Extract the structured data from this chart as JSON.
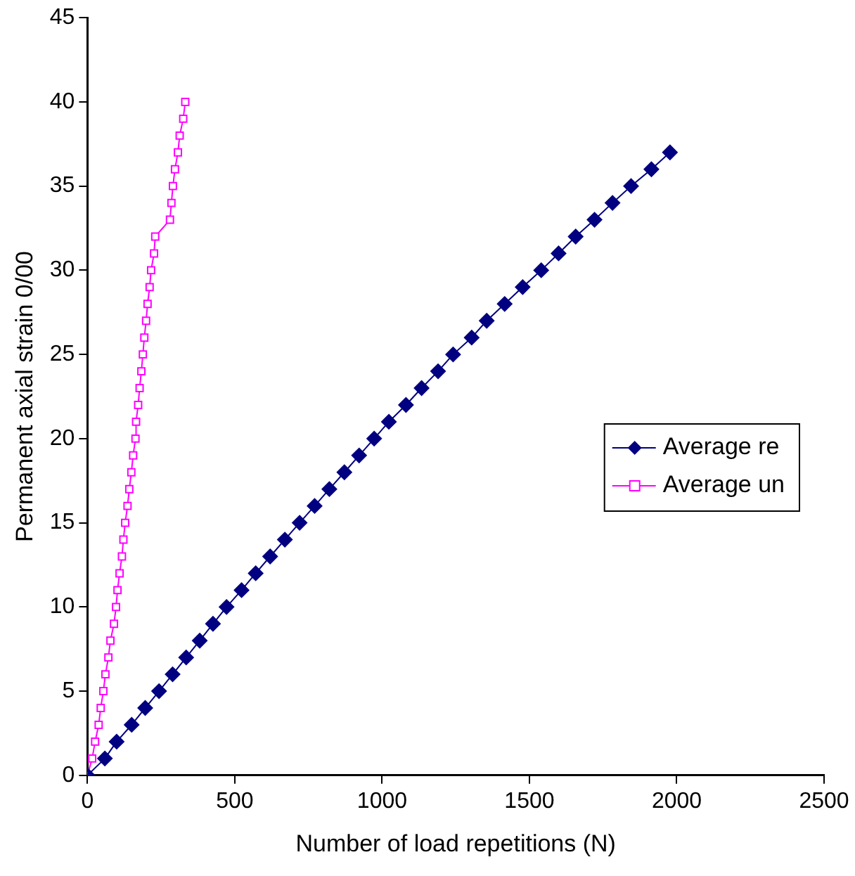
{
  "chart_data": {
    "type": "line",
    "xlabel": "Number of load repetitions (N)",
    "ylabel": "Permanent axial strain 0/00",
    "xlim": [
      0,
      2500
    ],
    "xticks": [
      0,
      500,
      1000,
      1500,
      2000,
      2500
    ],
    "ylim": [
      0,
      45
    ],
    "yticks": [
      0,
      5,
      10,
      15,
      20,
      25,
      30,
      35,
      40,
      45
    ],
    "grid": false,
    "legend": "right",
    "line_style": "solid",
    "series": [
      {
        "name": "Average re",
        "color": "#000080",
        "marker": "diamond",
        "x": [
          0,
          59,
          99,
          150,
          196,
          243,
          289,
          335,
          381,
          426,
          472,
          523,
          571,
          620,
          670,
          720,
          771,
          821,
          872,
          922,
          973,
          1023,
          1081,
          1134,
          1190,
          1241,
          1304,
          1355,
          1416,
          1477,
          1540,
          1599,
          1657,
          1721,
          1782,
          1845,
          1914,
          1977
        ],
        "values": [
          0,
          1,
          2,
          3,
          4,
          5,
          6,
          7,
          8,
          9,
          10,
          11,
          12,
          13,
          14,
          15,
          16,
          17,
          18,
          19,
          20,
          21,
          22,
          23,
          24,
          25,
          26,
          27,
          28,
          29,
          30,
          31,
          32,
          33,
          34,
          35,
          36,
          37
        ]
      },
      {
        "name": "Average un",
        "color": "#ff00ff",
        "marker": "square",
        "x": [
          0,
          16,
          26,
          38,
          45,
          54,
          61,
          71,
          78,
          90,
          97,
          102,
          109,
          117,
          122,
          128,
          136,
          142,
          149,
          155,
          163,
          165,
          172,
          177,
          183,
          188,
          193,
          199,
          204,
          211,
          216,
          226,
          230,
          280,
          285,
          290,
          297,
          307,
          313,
          325,
          332
        ],
        "values": [
          0,
          1,
          2,
          3,
          4,
          5,
          6,
          7,
          8,
          9,
          10,
          11,
          12,
          13,
          14,
          15,
          16,
          17,
          18,
          19,
          20,
          21,
          22,
          23,
          24,
          25,
          26,
          27,
          28,
          29,
          30,
          31,
          32,
          33,
          34,
          35,
          36,
          37,
          38,
          39,
          40
        ]
      }
    ]
  }
}
